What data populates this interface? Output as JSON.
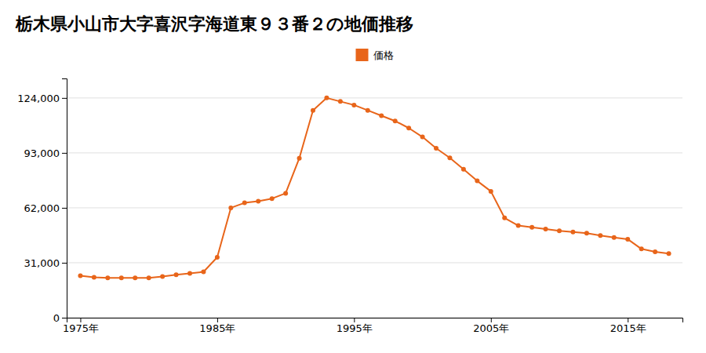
{
  "chart_data": {
    "type": "line",
    "title": "栃木県小山市大字喜沢字海道東９３番２の地価推移",
    "x": [
      1975,
      1976,
      1977,
      1978,
      1979,
      1980,
      1981,
      1982,
      1983,
      1984,
      1985,
      1986,
      1987,
      1988,
      1989,
      1990,
      1991,
      1992,
      1993,
      1994,
      1995,
      1996,
      1997,
      1998,
      1999,
      2000,
      2001,
      2002,
      2003,
      2004,
      2005,
      2006,
      2007,
      2008,
      2009,
      2010,
      2011,
      2012,
      2013,
      2014,
      2015,
      2016,
      2017,
      2018
    ],
    "series": [
      {
        "name": "価格",
        "color": "#e8651a",
        "marker": "circle",
        "values": [
          23700,
          22800,
          22500,
          22500,
          22500,
          22500,
          23200,
          24200,
          25000,
          25900,
          34100,
          62000,
          64800,
          65700,
          67200,
          70200,
          90000,
          117000,
          124000,
          122000,
          120000,
          117000,
          114000,
          111000,
          107000,
          102000,
          95600,
          90200,
          83800,
          77200,
          71300,
          56300,
          52000,
          51000,
          50000,
          49000,
          48400,
          47700,
          46400,
          45300,
          44300,
          38800,
          37200,
          36200
        ]
      }
    ],
    "xlim": [
      1974,
      2019
    ],
    "ylim": [
      0,
      135000
    ],
    "xticks": [
      {
        "value": 1975,
        "label": "1975年"
      },
      {
        "value": 1985,
        "label": "1985年"
      },
      {
        "value": 1995,
        "label": "1995年"
      },
      {
        "value": 2005,
        "label": "2005年"
      },
      {
        "value": 2015,
        "label": "2015年"
      }
    ],
    "yticks": [
      0,
      {
        "value": 31000,
        "label": "31,000"
      },
      {
        "value": 62000,
        "label": "62,000"
      },
      {
        "value": 93000,
        "label": "93,000"
      },
      {
        "value": 124000,
        "label": "124,000"
      }
    ],
    "grid": "y",
    "legend": "top"
  }
}
